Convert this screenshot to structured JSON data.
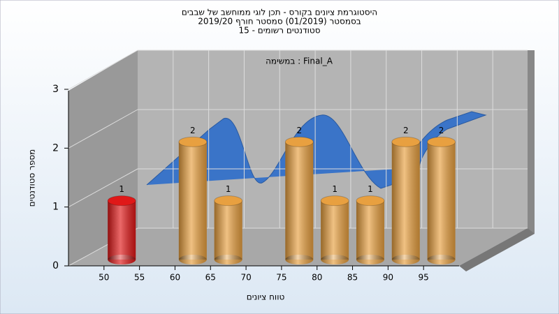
{
  "chart_data": {
    "type": "histogram",
    "title": [
      "היסטוגרמת ציונים בקורס - תכן לוגי ממוחשב של שבבים",
      "בסמסטר (01/2019) סמסטר חורף 2019/20",
      "סטודנטים רשומים - 15"
    ],
    "annotation": "Final_A : במשימה",
    "xlabel": "טווח ציונים",
    "ylabel": "מספר סטודנטים",
    "bins": [
      50,
      55,
      60,
      65,
      70,
      75,
      80,
      85,
      90,
      95,
      100
    ],
    "values": [
      1,
      0,
      2,
      1,
      0,
      2,
      1,
      1,
      2,
      2
    ],
    "colors": [
      "#e01818",
      "#e8a040",
      "#e8a040",
      "#e8a040",
      "#e8a040",
      "#e8a040",
      "#e8a040",
      "#e8a040",
      "#e8a040",
      "#e8a040"
    ],
    "xlim": [
      45,
      100
    ],
    "xticks": [
      50,
      55,
      60,
      65,
      70,
      75,
      80,
      85,
      90,
      95
    ],
    "ylim": [
      0,
      3
    ],
    "yticks": [
      0,
      1,
      2,
      3
    ],
    "grid": true
  }
}
